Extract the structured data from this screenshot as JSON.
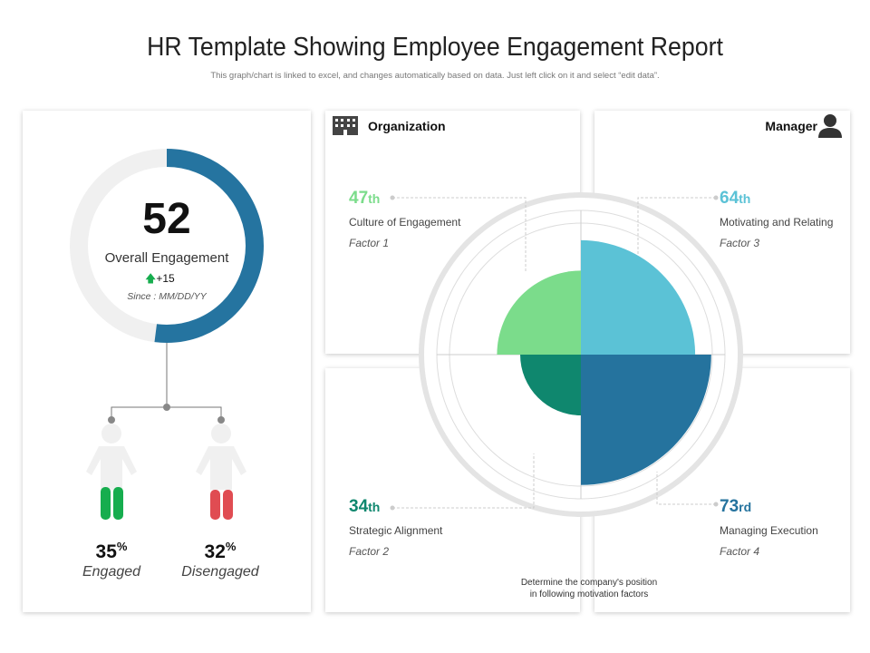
{
  "header": {
    "title": "HR Template Showing Employee Engagement Report",
    "subtitle": "This graph/chart is linked to excel, and changes automatically based on data. Just left click on it and select “edit data”."
  },
  "overall": {
    "value": "52",
    "label": "Overall Engagement",
    "change": "+15",
    "since": "Since : MM/DD/YY",
    "progress_percent": 52,
    "arc_color": "#2574a0",
    "track_color": "#f0f0f0"
  },
  "people": [
    {
      "percent": "35",
      "unit": "%",
      "label": "Engaged",
      "color": "#16ad4e"
    },
    {
      "percent": "32",
      "unit": "%",
      "label": "Disengaged",
      "color": "#e04c52"
    }
  ],
  "quadrants": {
    "organization": "Organization",
    "manager": "Manager",
    "footer_line1": "Determine the company's position",
    "footer_line2": "in following motivation factors"
  },
  "factors": [
    {
      "rank": "47",
      "suffix": "th",
      "name": "Culture of Engagement",
      "factor": "Factor 1",
      "color": "#7bdc8b"
    },
    {
      "rank": "34",
      "suffix": "th",
      "name": "Strategic Alignment",
      "factor": "Factor 2",
      "color": "#0f876e"
    },
    {
      "rank": "64",
      "suffix": "th",
      "name": "Motivating and Relating",
      "factor": "Factor 3",
      "color": "#5bc2d6"
    },
    {
      "rank": "73",
      "suffix": "rd",
      "name": "Managing Execution",
      "factor": "Factor 4",
      "color": "#25739e"
    }
  ]
}
